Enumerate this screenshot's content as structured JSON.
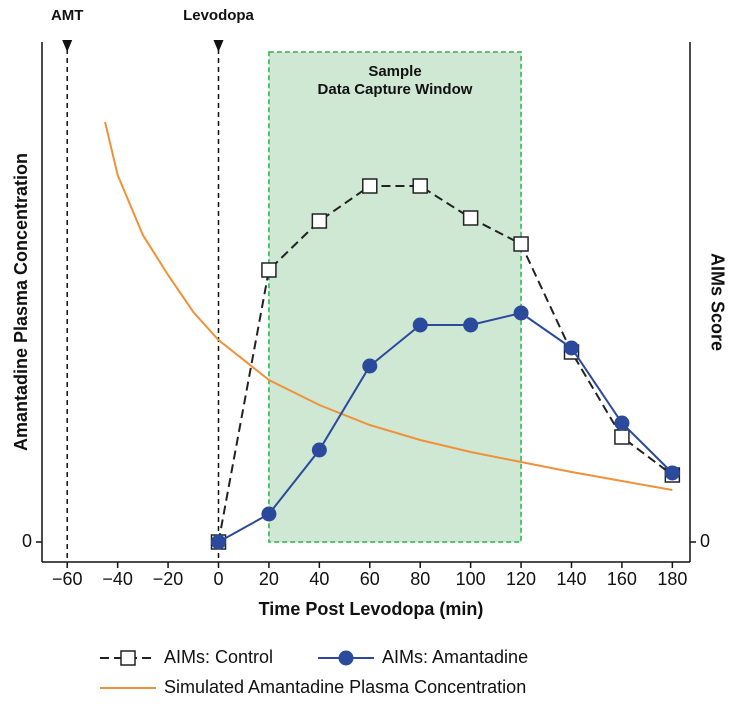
{
  "chart_data": {
    "type": "line",
    "xlabel": "Time Post Levodopa (min)",
    "ylabel": "Amantadine Plasma Concentration",
    "y2label": "AIMs Score",
    "xlim": [
      -70,
      187
    ],
    "xticks": [
      {
        "value": -60,
        "label": "−60"
      },
      {
        "value": -40,
        "label": "−40"
      },
      {
        "value": -20,
        "label": "−20"
      },
      0,
      20,
      40,
      60,
      80,
      100,
      120,
      140,
      160,
      180
    ],
    "ylim": [
      -0.4,
      10
    ],
    "yticks": [
      0
    ],
    "y2lim": [
      -0.4,
      10
    ],
    "y2ticks": [
      0
    ],
    "events": [
      {
        "x": -60,
        "label": "AMT"
      },
      {
        "x": 0,
        "label": "Levodopa"
      }
    ],
    "window": {
      "x": [
        20,
        120
      ],
      "label": [
        "Sample",
        "Data Capture Window"
      ],
      "color": "#cfe8d3",
      "edge": "#2bb24c"
    },
    "series": [
      {
        "name": "AIMs: Control",
        "color": "#222222",
        "axis": "y2",
        "style": "dashed",
        "marker": "square",
        "x": [
          0,
          20,
          40,
          60,
          80,
          100,
          120,
          140,
          160,
          180
        ],
        "values": [
          0,
          5.44,
          6.42,
          7.12,
          7.12,
          6.48,
          5.96,
          3.8,
          2.1,
          1.34
        ]
      },
      {
        "name": "AIMs: Amantadine",
        "color": "#2b4a9c",
        "axis": "y2",
        "style": "solid",
        "marker": "circle",
        "x": [
          0,
          20,
          40,
          60,
          80,
          100,
          120,
          140,
          160,
          180
        ],
        "values": [
          0,
          0.56,
          1.84,
          3.52,
          4.34,
          4.34,
          4.58,
          3.88,
          2.38,
          1.38
        ]
      },
      {
        "name": "Simulated Amantadine Plasma Concentration",
        "color": "#f0913a",
        "style": "solid",
        "marker": "none",
        "x": [
          -45,
          -40,
          -30,
          -20,
          -10,
          0,
          20,
          40,
          60,
          80,
          100,
          120,
          140,
          160,
          180
        ],
        "values": [
          8.4,
          7.34,
          6.14,
          5.34,
          4.6,
          4.04,
          3.24,
          2.74,
          2.34,
          2.04,
          1.8,
          1.6,
          1.4,
          1.22,
          1.04
        ]
      }
    ]
  }
}
